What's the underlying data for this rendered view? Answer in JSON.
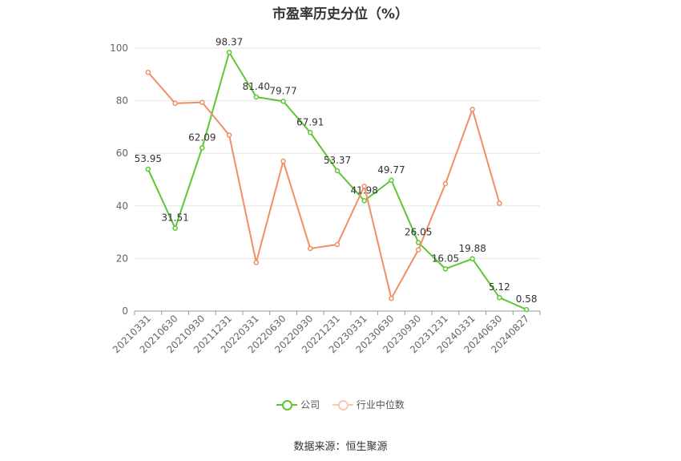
{
  "chart_data": {
    "type": "line",
    "title": "市盈率历史分位（%）",
    "categories": [
      "20210331",
      "20210630",
      "20210930",
      "20211231",
      "20220331",
      "20220630",
      "20220930",
      "20221231",
      "20230331",
      "20230630",
      "20230930",
      "20231231",
      "20240331",
      "20240630",
      "20240827"
    ],
    "series": [
      {
        "name": "公司",
        "color": "#5cc734",
        "values": [
          53.95,
          31.51,
          62.09,
          98.37,
          81.4,
          79.77,
          67.91,
          53.37,
          41.98,
          49.77,
          26.05,
          16.05,
          19.88,
          5.12,
          0.58
        ],
        "labels": [
          "53.95",
          "31.51",
          "62.09",
          "98.37",
          "81.40",
          "79.77",
          "67.91",
          "53.37",
          "41.98",
          "49.77",
          "26.05",
          "16.05",
          "19.88",
          "5.12",
          "0.58"
        ]
      },
      {
        "name": "行业中位数",
        "color": "#f28e64",
        "values": [
          90.8,
          79.0,
          79.4,
          66.9,
          18.5,
          57.0,
          23.8,
          25.3,
          47.5,
          4.8,
          23.3,
          48.4,
          76.7,
          41.0,
          null
        ]
      }
    ],
    "y_ticks": [
      "0",
      "20",
      "40",
      "60",
      "80",
      "100"
    ],
    "ylim": [
      0,
      100
    ],
    "grid": true,
    "legend_position": "bottom"
  },
  "footer": {
    "source": "数据来源：恒生聚源"
  }
}
